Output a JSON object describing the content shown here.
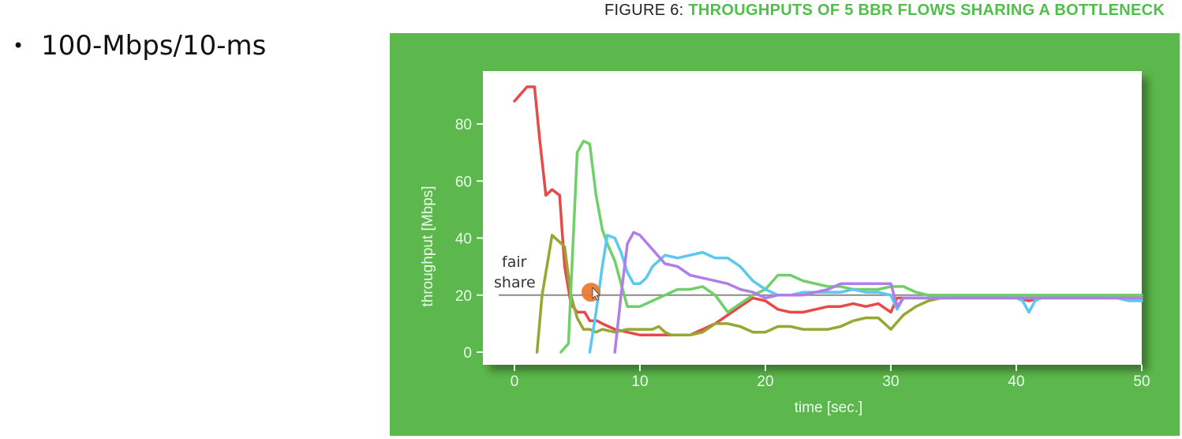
{
  "slide": {
    "bullet": "100-Mbps/10-ms"
  },
  "figure": {
    "title_prefix": "FIGURE 6:",
    "title_main": "THROUGHPUTS OF 5 BBR FLOWS SHARING A BOTTLENECK"
  },
  "colors": {
    "panel": "#5cb84d",
    "axis_text": "#eaffea",
    "fair_line": "#8a8a8a",
    "cursor_dot": "#e8762f"
  },
  "chart_data": {
    "type": "line",
    "title": "THROUGHPUTS OF 5 BBR FLOWS SHARING A BOTTLENECK",
    "xlabel": "time [sec.]",
    "ylabel": "throughput [Mbps]",
    "xlim": [
      -1,
      51
    ],
    "ylim": [
      -4,
      98
    ],
    "xticks": [
      0,
      10,
      20,
      30,
      40,
      50
    ],
    "yticks": [
      0,
      20,
      40,
      60,
      80
    ],
    "grid": false,
    "annotation": {
      "text_line1": "fair",
      "text_line2": "share",
      "y": 20
    },
    "series": [
      {
        "color": "#e84a4a",
        "points": [
          [
            0,
            88
          ],
          [
            1,
            93
          ],
          [
            1.6,
            93
          ],
          [
            2,
            75
          ],
          [
            2.5,
            55
          ],
          [
            3,
            57
          ],
          [
            3.6,
            55
          ],
          [
            4,
            30
          ],
          [
            4.5,
            17
          ],
          [
            5,
            14
          ],
          [
            5.6,
            14
          ],
          [
            6,
            11
          ],
          [
            6.6,
            11
          ],
          [
            7,
            10
          ],
          [
            8,
            8
          ],
          [
            9,
            7
          ],
          [
            10,
            6
          ],
          [
            11,
            6
          ],
          [
            12,
            6
          ],
          [
            13,
            6
          ],
          [
            14,
            6
          ],
          [
            15,
            8
          ],
          [
            16,
            10
          ],
          [
            17,
            13
          ],
          [
            18,
            16
          ],
          [
            19,
            19
          ],
          [
            20,
            18
          ],
          [
            21,
            15
          ],
          [
            22,
            14
          ],
          [
            23,
            14
          ],
          [
            24,
            15
          ],
          [
            25,
            16
          ],
          [
            26,
            16
          ],
          [
            27,
            17
          ],
          [
            28,
            16
          ],
          [
            29,
            17
          ],
          [
            30,
            14
          ],
          [
            30.5,
            19
          ],
          [
            31,
            19
          ],
          [
            32,
            19
          ],
          [
            33,
            19
          ],
          [
            34,
            19
          ],
          [
            35,
            19
          ],
          [
            36,
            19
          ],
          [
            37,
            19
          ],
          [
            38,
            19
          ],
          [
            39,
            19
          ],
          [
            40,
            19
          ],
          [
            41,
            18
          ],
          [
            42,
            19
          ],
          [
            43,
            19
          ],
          [
            44,
            19
          ],
          [
            45,
            19
          ],
          [
            46,
            19
          ],
          [
            47,
            19
          ],
          [
            48,
            19
          ],
          [
            49,
            19
          ],
          [
            50,
            19
          ]
        ]
      },
      {
        "color": "#98a632",
        "points": [
          [
            1.8,
            0
          ],
          [
            2.2,
            20
          ],
          [
            3,
            41
          ],
          [
            3.5,
            39
          ],
          [
            4,
            37
          ],
          [
            4.5,
            20
          ],
          [
            5,
            12
          ],
          [
            5.5,
            8
          ],
          [
            6,
            8
          ],
          [
            6.5,
            7
          ],
          [
            7,
            8
          ],
          [
            8,
            7
          ],
          [
            9,
            8
          ],
          [
            10,
            8
          ],
          [
            11,
            8
          ],
          [
            11.5,
            9
          ],
          [
            12,
            7
          ],
          [
            12.5,
            6
          ],
          [
            13,
            6
          ],
          [
            14,
            6
          ],
          [
            15,
            7
          ],
          [
            16,
            10
          ],
          [
            17,
            10
          ],
          [
            18,
            9
          ],
          [
            19,
            7
          ],
          [
            20,
            7
          ],
          [
            21,
            9
          ],
          [
            22,
            9
          ],
          [
            23,
            8
          ],
          [
            24,
            8
          ],
          [
            25,
            8
          ],
          [
            26,
            9
          ],
          [
            27,
            11
          ],
          [
            28,
            12
          ],
          [
            29,
            12
          ],
          [
            30,
            8
          ],
          [
            31,
            13
          ],
          [
            32,
            16
          ],
          [
            33,
            18
          ],
          [
            34,
            19
          ],
          [
            35,
            19
          ],
          [
            36,
            19
          ],
          [
            37,
            19
          ],
          [
            38,
            19
          ],
          [
            40,
            19
          ],
          [
            42,
            19
          ],
          [
            44,
            19
          ],
          [
            46,
            19
          ],
          [
            48,
            19
          ],
          [
            50,
            19
          ]
        ]
      },
      {
        "color": "#6fd06a",
        "points": [
          [
            3.7,
            0
          ],
          [
            4.3,
            3
          ],
          [
            5,
            70
          ],
          [
            5.5,
            74
          ],
          [
            6,
            73
          ],
          [
            6.5,
            55
          ],
          [
            7,
            43
          ],
          [
            7.4,
            38
          ],
          [
            8,
            32
          ],
          [
            8.5,
            24
          ],
          [
            9,
            16
          ],
          [
            10,
            16
          ],
          [
            11,
            18
          ],
          [
            12,
            20
          ],
          [
            13,
            22
          ],
          [
            14,
            22
          ],
          [
            15,
            23
          ],
          [
            16,
            20
          ],
          [
            16.5,
            17
          ],
          [
            17,
            14
          ],
          [
            18,
            17
          ],
          [
            19,
            20
          ],
          [
            20,
            22
          ],
          [
            21,
            27
          ],
          [
            22,
            27
          ],
          [
            23,
            25
          ],
          [
            24,
            24
          ],
          [
            25,
            23
          ],
          [
            26,
            23
          ],
          [
            27,
            22
          ],
          [
            28,
            22
          ],
          [
            29,
            22
          ],
          [
            30,
            23
          ],
          [
            31,
            23
          ],
          [
            32,
            21
          ],
          [
            33,
            20
          ],
          [
            34,
            20
          ],
          [
            35,
            20
          ],
          [
            36,
            20
          ],
          [
            38,
            20
          ],
          [
            40,
            20
          ],
          [
            42,
            20
          ],
          [
            44,
            20
          ],
          [
            46,
            20
          ],
          [
            48,
            20
          ],
          [
            50,
            20
          ]
        ]
      },
      {
        "color": "#5cc8f2",
        "points": [
          [
            6,
            0
          ],
          [
            6.5,
            14
          ],
          [
            7,
            30
          ],
          [
            7.4,
            41
          ],
          [
            8,
            40
          ],
          [
            8.5,
            35
          ],
          [
            9,
            28
          ],
          [
            9.5,
            24
          ],
          [
            10,
            24
          ],
          [
            10.5,
            26
          ],
          [
            11,
            30
          ],
          [
            12,
            34
          ],
          [
            13,
            33
          ],
          [
            14,
            34
          ],
          [
            15,
            35
          ],
          [
            16,
            33
          ],
          [
            17,
            33
          ],
          [
            18,
            30
          ],
          [
            19,
            25
          ],
          [
            20,
            22
          ],
          [
            21,
            20
          ],
          [
            22,
            20
          ],
          [
            23,
            21
          ],
          [
            24,
            21
          ],
          [
            25,
            21
          ],
          [
            26,
            21
          ],
          [
            27,
            22
          ],
          [
            28,
            21
          ],
          [
            29,
            21
          ],
          [
            30,
            20
          ],
          [
            30.5,
            15
          ],
          [
            31,
            19
          ],
          [
            32,
            19
          ],
          [
            34,
            19
          ],
          [
            36,
            19
          ],
          [
            38,
            19
          ],
          [
            40,
            19
          ],
          [
            40.5,
            18
          ],
          [
            41,
            14
          ],
          [
            41.5,
            18
          ],
          [
            42,
            19
          ],
          [
            44,
            19
          ],
          [
            46,
            19
          ],
          [
            48,
            19
          ],
          [
            49,
            18
          ],
          [
            50,
            18
          ]
        ]
      },
      {
        "color": "#b07ee8",
        "points": [
          [
            8,
            0
          ],
          [
            8.5,
            20
          ],
          [
            9,
            38
          ],
          [
            9.5,
            42
          ],
          [
            10,
            41
          ],
          [
            11,
            36
          ],
          [
            12,
            31
          ],
          [
            13,
            30
          ],
          [
            14,
            27
          ],
          [
            15,
            26
          ],
          [
            16,
            25
          ],
          [
            17,
            24
          ],
          [
            18,
            22
          ],
          [
            19,
            21
          ],
          [
            20,
            19
          ],
          [
            21,
            20
          ],
          [
            22,
            20
          ],
          [
            23,
            20
          ],
          [
            24,
            21
          ],
          [
            25,
            22
          ],
          [
            26,
            24
          ],
          [
            27,
            24
          ],
          [
            28,
            24
          ],
          [
            29,
            24
          ],
          [
            30,
            24
          ],
          [
            30.5,
            16
          ],
          [
            31,
            19
          ],
          [
            32,
            19
          ],
          [
            34,
            19
          ],
          [
            36,
            19
          ],
          [
            38,
            19
          ],
          [
            40,
            19
          ],
          [
            41,
            19
          ],
          [
            42,
            19
          ],
          [
            44,
            19
          ],
          [
            46,
            19
          ],
          [
            48,
            19
          ],
          [
            50,
            19
          ]
        ]
      }
    ],
    "fair_share_y": 20,
    "cursor": {
      "x": 6.1,
      "y": 21
    }
  }
}
